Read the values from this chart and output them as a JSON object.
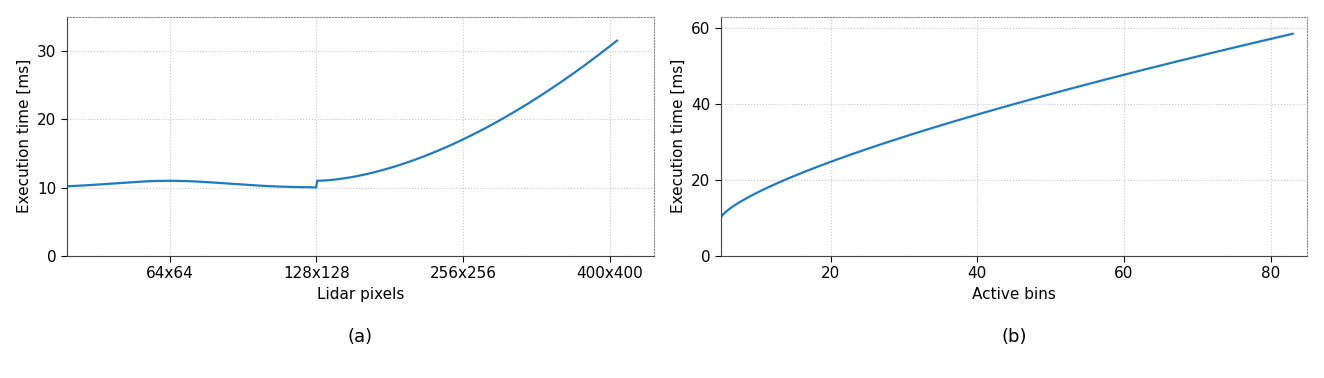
{
  "plot_a": {
    "xlabel": "Lidar pixels",
    "ylabel": "Execution time [ms]",
    "caption": "(a)",
    "x_ticks_labels": [
      "64x64",
      "128x128",
      "256x256",
      "400x400"
    ],
    "x_ticks_values": [
      1,
      2,
      3,
      4
    ],
    "xlim": [
      0.3,
      4.3
    ],
    "ylim": [
      0,
      35
    ],
    "yticks": [
      0,
      10,
      20,
      30
    ],
    "line_color": "#1f7bbf",
    "line_width": 1.6
  },
  "plot_b": {
    "xlabel": "Active bins",
    "ylabel": "Execution time [ms]",
    "caption": "(b)",
    "xlim": [
      5,
      85
    ],
    "xticks": [
      20,
      40,
      60,
      80
    ],
    "ylim": [
      0,
      63
    ],
    "yticks": [
      0,
      20,
      40,
      60
    ],
    "line_color": "#1f7bbf",
    "line_width": 1.6
  },
  "background_color": "#ffffff",
  "grid_color": "#c8c8c8",
  "grid_style": ":",
  "font_size": 11,
  "caption_font_size": 13
}
